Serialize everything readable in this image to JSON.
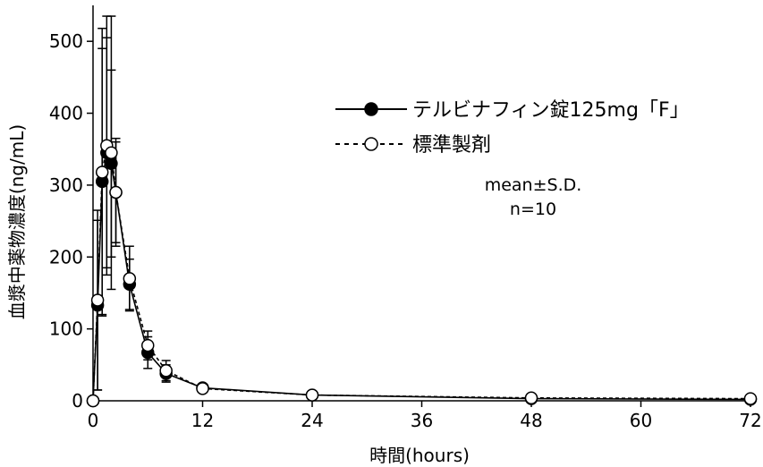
{
  "chart_data": {
    "type": "line",
    "xlabel": "時間(hours)",
    "ylabel": "血漿中薬物濃度(ng/mL)",
    "xlim": [
      0,
      72
    ],
    "ylim": [
      0,
      550
    ],
    "xticks": [
      0,
      12,
      24,
      36,
      48,
      60,
      72
    ],
    "yticks": [
      0,
      100,
      200,
      300,
      400,
      500
    ],
    "grid": false,
    "legend_position": "top-right",
    "annotation": [
      "mean±S.D.",
      "n=10"
    ],
    "series": [
      {
        "name": "テルビナフィン錠125mg「F」",
        "marker": "filled-circle",
        "line": "solid",
        "x": [
          0,
          0.5,
          1,
          1.5,
          2,
          2.5,
          4,
          6,
          8,
          12,
          24,
          48,
          72
        ],
        "y": [
          0,
          133,
          305,
          345,
          330,
          290,
          162,
          67,
          38,
          18,
          8,
          3,
          2
        ],
        "sd": [
          0,
          118,
          185,
          160,
          130,
          75,
          35,
          22,
          12,
          5,
          3,
          1,
          1
        ]
      },
      {
        "name": "標準製剤",
        "marker": "open-circle",
        "line": "dotted",
        "x": [
          0,
          0.5,
          1,
          1.5,
          2,
          2.5,
          4,
          6,
          8,
          12,
          24,
          48,
          72
        ],
        "y": [
          0,
          140,
          318,
          355,
          345,
          290,
          170,
          77,
          42,
          17,
          8,
          4,
          3
        ],
        "sd": [
          0,
          125,
          200,
          180,
          190,
          70,
          45,
          20,
          14,
          5,
          3,
          1,
          1
        ]
      }
    ]
  }
}
